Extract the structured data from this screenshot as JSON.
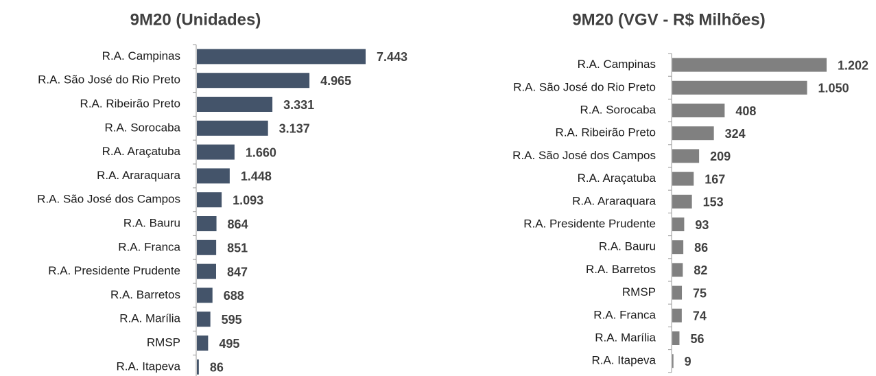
{
  "chart_data": [
    {
      "type": "bar",
      "orientation": "horizontal",
      "title": "9M20 (Unidades)",
      "color": "#44546a",
      "categories": [
        "R.A. Campinas",
        "R.A. São José do Rio Preto",
        "R.A. Ribeirão Preto",
        "R.A. Sorocaba",
        "R.A. Araçatuba",
        "R.A. Araraquara",
        "R.A. São José dos Campos",
        "R.A. Bauru",
        "R.A. Franca",
        "R.A. Presidente Prudente",
        "R.A. Barretos",
        "R.A. Marília",
        "RMSP",
        "R.A. Itapeva"
      ],
      "values": [
        7443,
        4965,
        3331,
        3137,
        1660,
        1448,
        1093,
        864,
        851,
        847,
        688,
        595,
        495,
        86
      ],
      "value_labels": [
        "7.443",
        "4.965",
        "3.331",
        "3.137",
        "1.660",
        "1.448",
        "1.093",
        "864",
        "851",
        "847",
        "688",
        "595",
        "495",
        "86"
      ]
    },
    {
      "type": "bar",
      "orientation": "horizontal",
      "title": "9M20 (VGV - R$ Milhões)",
      "color": "#808080",
      "categories": [
        "R.A. Campinas",
        "R.A. São José do Rio Preto",
        "R.A. Sorocaba",
        "R.A. Ribeirão Preto",
        "R.A. São José dos Campos",
        "R.A. Araçatuba",
        "R.A. Araraquara",
        "R.A. Presidente Prudente",
        "R.A. Bauru",
        "R.A. Barretos",
        "RMSP",
        "R.A. Franca",
        "R.A. Marília",
        "R.A. Itapeva"
      ],
      "values": [
        1202,
        1050,
        408,
        324,
        209,
        167,
        153,
        93,
        86,
        82,
        75,
        74,
        56,
        9
      ],
      "value_labels": [
        "1.202",
        "1.050",
        "408",
        "324",
        "209",
        "167",
        "153",
        "93",
        "86",
        "82",
        "75",
        "74",
        "56",
        "9"
      ]
    }
  ]
}
